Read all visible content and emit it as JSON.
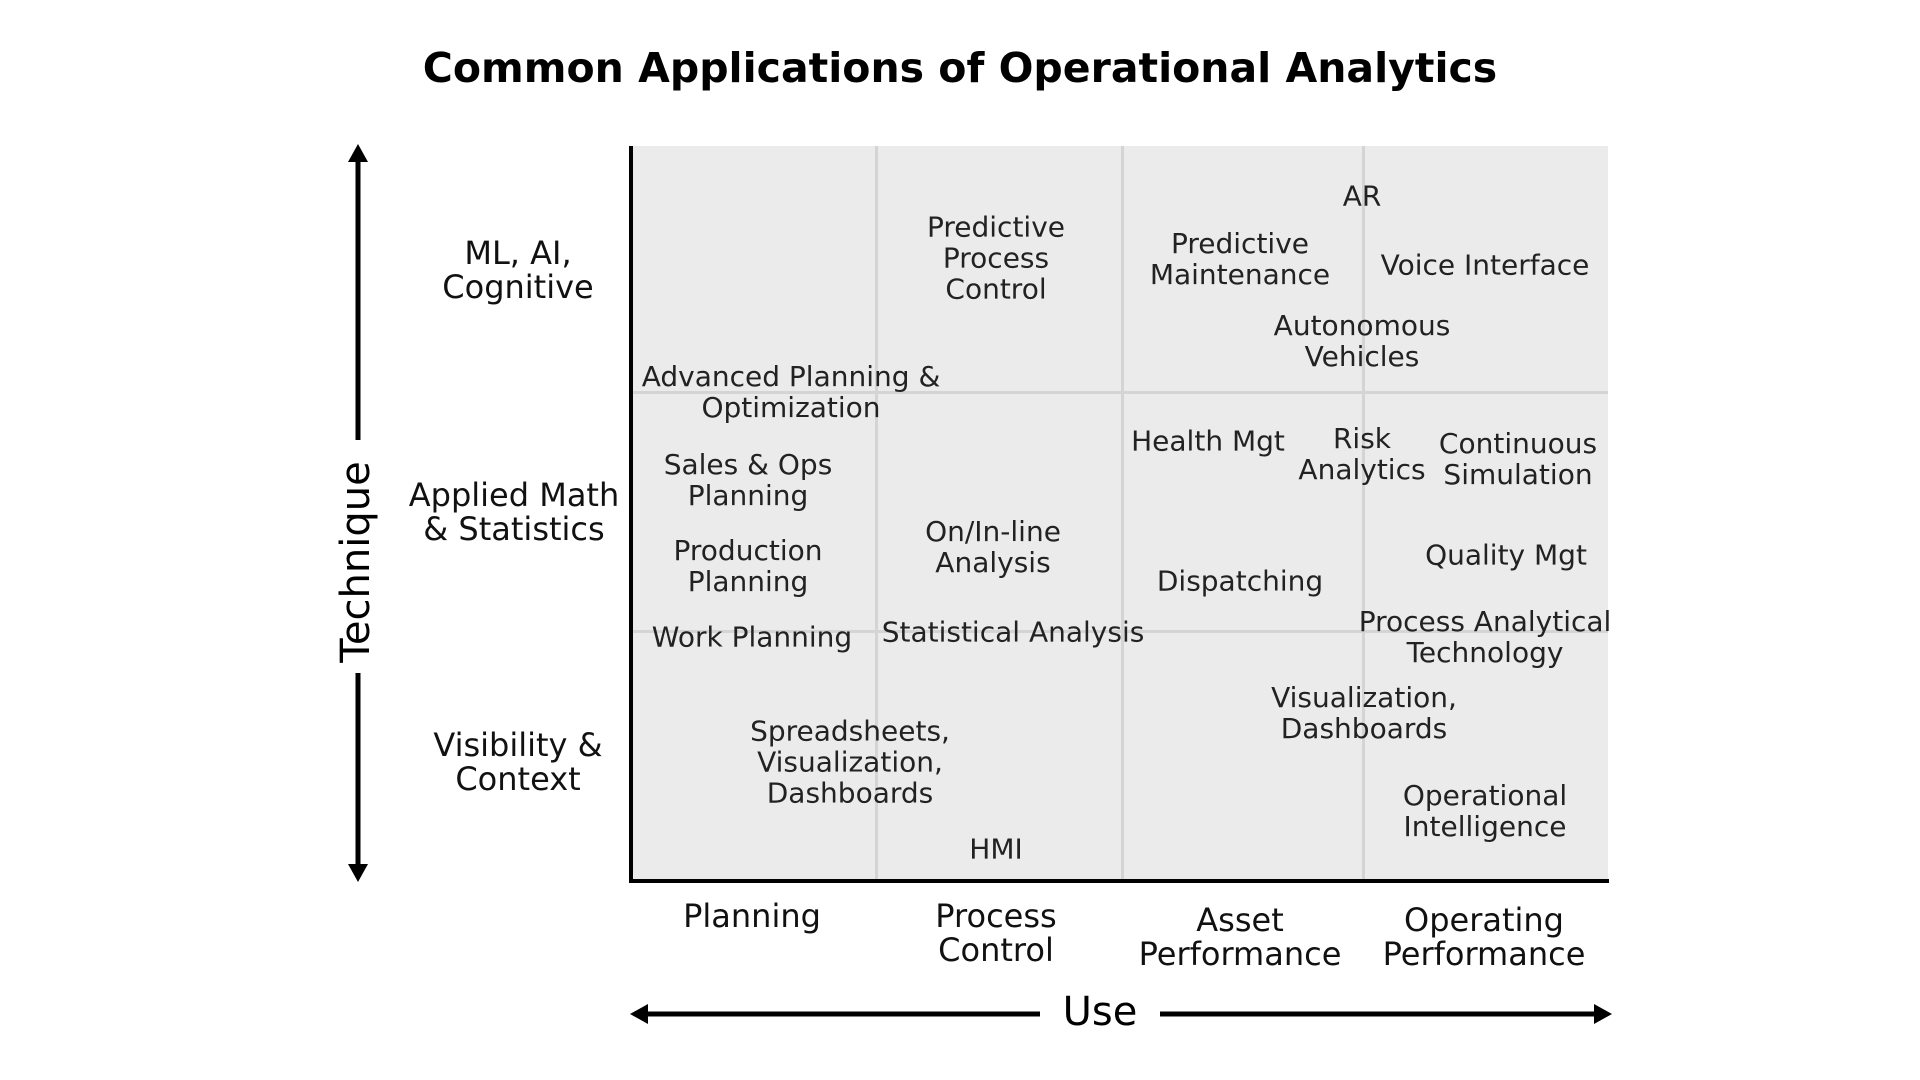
{
  "title": "Common Applications of Operational Analytics",
  "axes": {
    "x_title": "Use",
    "y_title": "Technique"
  },
  "rows": [
    {
      "label": "ML, AI,\nCognitive"
    },
    {
      "label": "Applied Math\n& Statistics"
    },
    {
      "label": "Visibility &\nContext"
    }
  ],
  "columns": [
    {
      "label": "Planning"
    },
    {
      "label": "Process\nControl"
    },
    {
      "label": "Asset\nPerformance"
    },
    {
      "label": "Operating\nPerformance"
    }
  ],
  "items": [
    {
      "id": "ar",
      "text": "AR"
    },
    {
      "id": "predictive-process-control",
      "text": "Predictive\nProcess\nControl"
    },
    {
      "id": "predictive-maintenance",
      "text": "Predictive\nMaintenance"
    },
    {
      "id": "voice-interface",
      "text": "Voice Interface"
    },
    {
      "id": "autonomous-vehicles",
      "text": "Autonomous\nVehicles"
    },
    {
      "id": "advanced-planning",
      "text": "Advanced Planning &\nOptimization"
    },
    {
      "id": "health-mgt",
      "text": "Health Mgt"
    },
    {
      "id": "risk-analytics",
      "text": "Risk\nAnalytics"
    },
    {
      "id": "continuous-simulation",
      "text": "Continuous\nSimulation"
    },
    {
      "id": "sales-ops-planning",
      "text": "Sales & Ops\nPlanning"
    },
    {
      "id": "on-in-line-analysis",
      "text": "On/In-line\nAnalysis"
    },
    {
      "id": "quality-mgt",
      "text": "Quality Mgt"
    },
    {
      "id": "production-planning",
      "text": "Production\nPlanning"
    },
    {
      "id": "dispatching",
      "text": "Dispatching"
    },
    {
      "id": "process-analytical-technology",
      "text": "Process Analytical\nTechnology"
    },
    {
      "id": "work-planning",
      "text": "Work Planning"
    },
    {
      "id": "statistical-analysis",
      "text": "Statistical Analysis"
    },
    {
      "id": "visualization-dashboards",
      "text": "Visualization,\nDashboards"
    },
    {
      "id": "spreadsheets-visualization-dashboards",
      "text": "Spreadsheets,\nVisualization,\nDashboards"
    },
    {
      "id": "operational-intelligence",
      "text": "Operational\nIntelligence"
    },
    {
      "id": "hmi",
      "text": "HMI"
    }
  ]
}
